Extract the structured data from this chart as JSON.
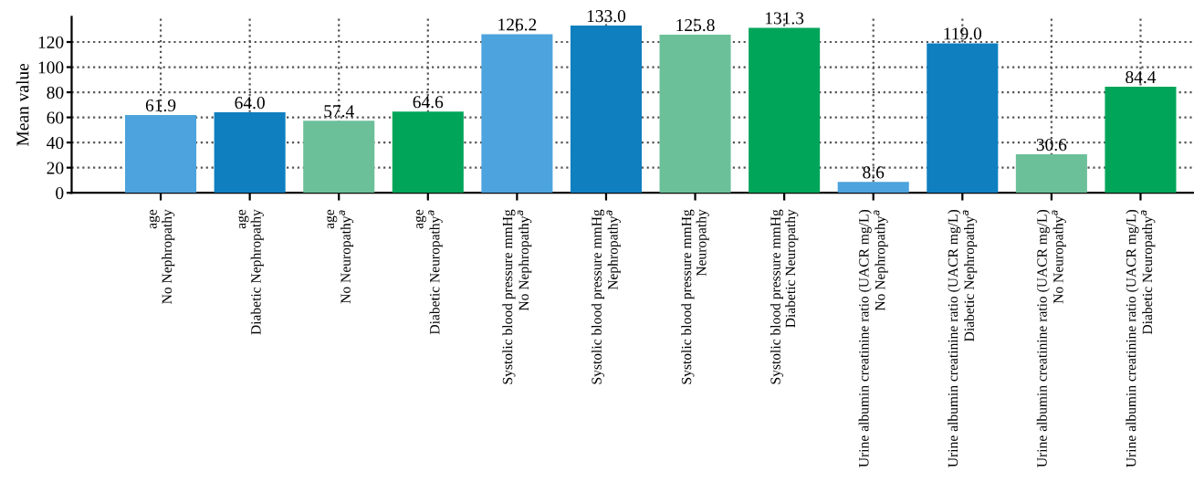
{
  "chart_data": {
    "type": "bar",
    "ylabel": "Mean value",
    "categories": [
      "age\nNo Nephropathy",
      "age\nDiabetic Nephropathy",
      "age\nNo Neuropathy$^{a}$",
      "age\nDiabetic Neuropathy$^{a}$",
      "Systolic blood pressure mmHg\nNo Nephropathy$^{a}$",
      "Systolic blood pressure mmHg\nNephropathy$^{a}$",
      "Systolic blood pressure mmHg\nNeuropathy",
      "Systolic blood pressure mmHg\nDiabetic Neuropathy",
      "Urine albumin creatinine ratio (UACR mg/L)\nNo Nephropathy$^{a}$",
      "Urine albumin creatinine ratio (UACR mg/L)\nDiabetic Nephropathy$^{a}$",
      "Urine albumin creatinine ratio (UACR mg/L)\nNo Neuropathy$^{a}$",
      "Urine albumin creatinine ratio (UACR mg/L)\nDiabetic Neuropathy$^{a}$"
    ],
    "values": [
      61.9,
      64.0,
      57.4,
      64.6,
      126.2,
      133.0,
      125.8,
      131.3,
      8.6,
      119.0,
      30.6,
      84.4
    ],
    "colors": [
      "#4ca3dd",
      "#0f7fc0",
      "#6cc099",
      "#00a55a",
      "#4ca3dd",
      "#0f7fc0",
      "#6cc099",
      "#00a55a",
      "#4ca3dd",
      "#0f7fc0",
      "#6cc099",
      "#00a55a"
    ],
    "value_labels": [
      "61.9",
      "64.0",
      "57.4",
      "64.6",
      "126.2",
      "133.0",
      "125.8",
      "131.3",
      "8.6",
      "119.0",
      "30.6",
      "84.4"
    ],
    "ylim": [
      0,
      140
    ],
    "yticks": [
      0,
      20,
      40,
      60,
      80,
      100,
      120
    ],
    "grid": true,
    "line_style": "dotted"
  }
}
